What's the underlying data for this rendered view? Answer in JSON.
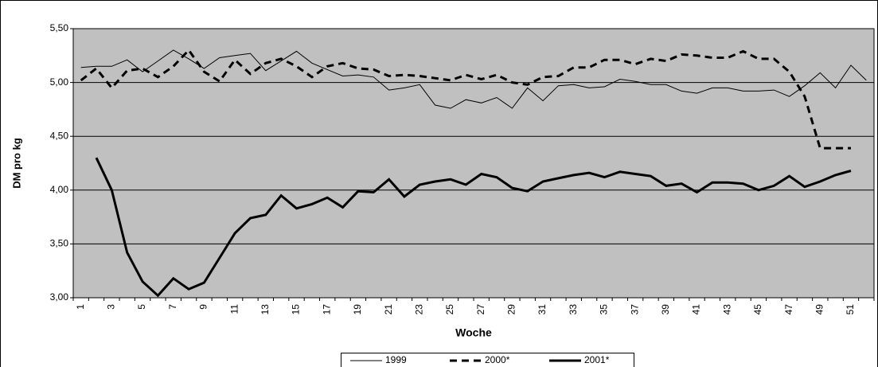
{
  "chart_data": {
    "type": "line",
    "y_label": "DM pro kg",
    "x_label": "Woche",
    "categories": [
      1,
      null,
      3,
      null,
      5,
      null,
      7,
      null,
      9,
      null,
      11,
      null,
      13,
      null,
      15,
      null,
      17,
      null,
      19,
      null,
      21,
      null,
      23,
      null,
      25,
      null,
      27,
      null,
      29,
      null,
      31,
      null,
      33,
      null,
      35,
      null,
      37,
      null,
      39,
      null,
      41,
      null,
      43,
      null,
      45,
      null,
      47,
      null,
      49,
      null,
      51,
      null
    ],
    "series": [
      {
        "name": "1999",
        "color": "#000000",
        "width": 1,
        "dash": false,
        "values": [
          5.14,
          5.15,
          5.15,
          5.21,
          5.1,
          5.2,
          5.3,
          5.22,
          5.13,
          5.23,
          5.25,
          5.27,
          5.11,
          5.2,
          5.29,
          5.18,
          5.12,
          5.06,
          5.07,
          5.05,
          4.93,
          4.95,
          4.98,
          4.79,
          4.76,
          4.84,
          4.81,
          4.86,
          4.76,
          4.95,
          4.83,
          4.97,
          4.98,
          4.95,
          4.96,
          5.03,
          5.01,
          4.98,
          4.98,
          4.92,
          4.9,
          4.95,
          4.95,
          4.92,
          4.92,
          4.93,
          4.87,
          4.97,
          5.09,
          4.95,
          5.16,
          5.02
        ]
      },
      {
        "name": "2000*",
        "color": "#000000",
        "width": 3,
        "dash": true,
        "values": [
          5.02,
          5.13,
          4.95,
          5.11,
          5.13,
          5.05,
          5.15,
          5.3,
          5.1,
          5.01,
          5.21,
          5.08,
          5.18,
          5.22,
          5.15,
          5.05,
          5.15,
          5.18,
          5.13,
          5.12,
          5.06,
          5.07,
          5.06,
          5.04,
          5.02,
          5.07,
          5.03,
          5.07,
          5.0,
          4.98,
          5.05,
          5.06,
          5.14,
          5.14,
          5.21,
          5.21,
          5.17,
          5.22,
          5.2,
          5.26,
          5.25,
          5.23,
          5.23,
          5.29,
          5.22,
          5.22,
          5.1,
          4.87,
          4.39,
          4.39,
          4.39,
          null
        ]
      },
      {
        "name": "2001*",
        "color": "#000000",
        "width": 3,
        "dash": false,
        "values": [
          null,
          4.3,
          4.0,
          3.42,
          3.15,
          3.02,
          3.18,
          3.08,
          3.14,
          3.37,
          3.6,
          3.74,
          3.77,
          3.95,
          3.83,
          3.87,
          3.93,
          3.84,
          3.99,
          3.98,
          4.1,
          3.94,
          4.05,
          4.08,
          4.1,
          4.05,
          4.15,
          4.12,
          4.02,
          3.99,
          4.08,
          4.11,
          4.14,
          4.16,
          4.12,
          4.17,
          4.15,
          4.13,
          4.04,
          4.06,
          3.98,
          4.07,
          4.07,
          4.06,
          4.0,
          4.04,
          4.13,
          4.03,
          4.08,
          4.14,
          4.18,
          null
        ]
      }
    ],
    "ylim": [
      3,
      5.5
    ],
    "yticks": [
      {
        "value": 3,
        "label": "3,00"
      },
      {
        "value": 3.5,
        "label": "3,50"
      },
      {
        "value": 4,
        "label": "4,00"
      },
      {
        "value": 4.5,
        "label": "4,50"
      },
      {
        "value": 5,
        "label": "5,00"
      },
      {
        "value": 5.5,
        "label": "5,50"
      }
    ],
    "grid": true,
    "plot_background": "#c0c0c0",
    "legend": "bottom"
  }
}
